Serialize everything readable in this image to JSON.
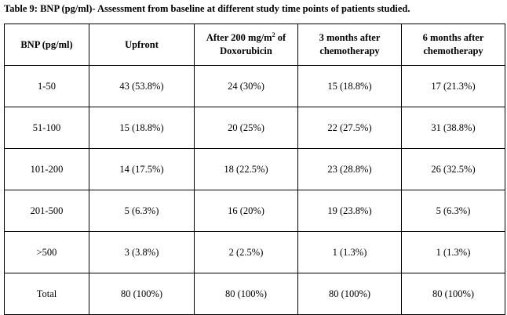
{
  "caption": {
    "label": "Table 9: BNP (pg/ml)-",
    "text": " Assessment from baseline at different study time points of patients studied."
  },
  "headers": {
    "col0": "BNP (pg/ml)",
    "col1": "Upfront",
    "col2_a": "After 200 mg/m",
    "col2_sup": "2",
    "col2_b": " of",
    "col2_c": "Doxorubicin",
    "col3_a": "3 months after",
    "col3_b": "chemotherapy",
    "col4_a": "6 months after",
    "col4_b": "chemotherapy"
  },
  "rows": [
    [
      "1-50",
      "43 (53.8%)",
      "24 (30%)",
      "15 (18.8%)",
      "17 (21.3%)"
    ],
    [
      "51-100",
      "15 (18.8%)",
      "20 (25%)",
      "22 (27.5%)",
      "31 (38.8%)"
    ],
    [
      "101-200",
      "14 (17.5%)",
      "18 (22.5%)",
      "23 (28.8%)",
      "26 (32.5%)"
    ],
    [
      "201-500",
      "5 (6.3%)",
      "16 (20%)",
      "19 (23.8%)",
      "5 (6.3%)"
    ],
    [
      ">500",
      "3 (3.8%)",
      "2 (2.5%)",
      "1 (1.3%)",
      "1 (1.3%)"
    ],
    [
      "Total",
      "80 (100%)",
      "80 (100%)",
      "80 (100%)",
      "80 (100%)"
    ]
  ]
}
